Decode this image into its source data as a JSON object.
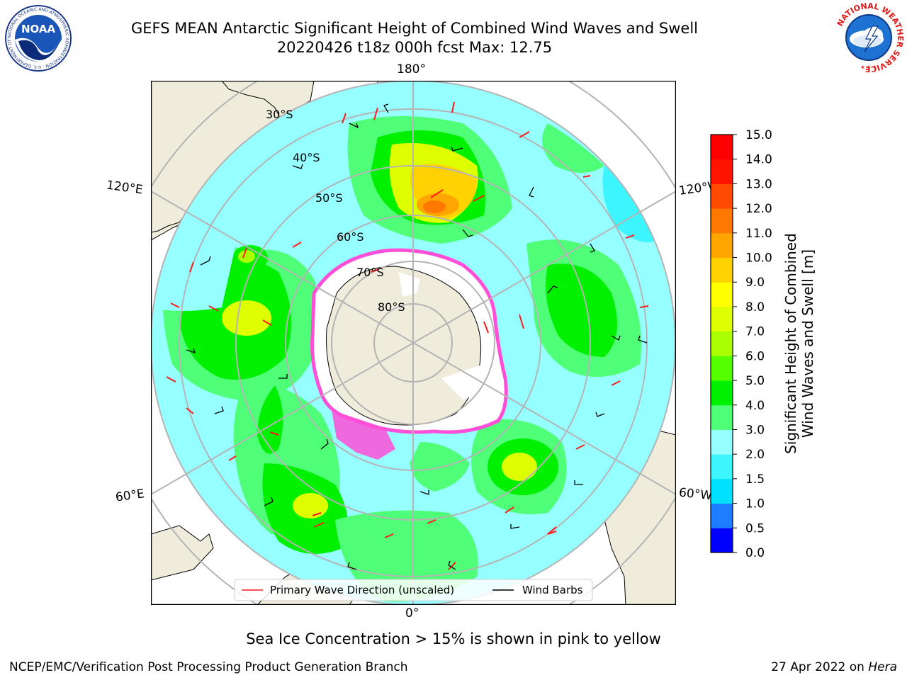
{
  "title": {
    "line1": "GEFS MEAN Antarctic Significant Height of Combined Wind Waves and Swell",
    "line2": "20220426 t18z 000h fcst   Max: 12.75"
  },
  "map": {
    "projection": "south-polar-stereographic",
    "longitude_labels": {
      "top": "180°",
      "bottom": "0°",
      "left_upper": "120°E",
      "right_upper": "120°W",
      "left_lower": "60°E",
      "right_lower": "60°W"
    },
    "latitude_labels": [
      "30°S",
      "40°S",
      "50°S",
      "60°S",
      "70°S",
      "80°S"
    ],
    "colors": {
      "land": "#efecdb",
      "ice_shelf": "#ffffff",
      "sea_ice": "#ff4fd8",
      "wave_direction": "#ff1a1a",
      "wind_barb": "#000000",
      "graticule": "#b4b4b4"
    }
  },
  "legend": {
    "wave_direction": "Primary Wave Direction (unscaled)",
    "wind_barbs": "Wind Barbs"
  },
  "colorbar": {
    "label_line1": "Significant Height of Combined",
    "label_line2": "Wind Waves and Swell [m]",
    "ticks": [
      "0.0",
      "0.5",
      "1.0",
      "1.5",
      "2.0",
      "3.0",
      "4.0",
      "5.0",
      "6.0",
      "7.0",
      "8.0",
      "9.0",
      "10.0",
      "11.0",
      "12.0",
      "13.0",
      "14.0",
      "15.0"
    ],
    "colors": [
      "#0000ff",
      "#1e7dff",
      "#00e1ff",
      "#3cf5ff",
      "#96ffff",
      "#50ff78",
      "#00f000",
      "#55ff00",
      "#aaff00",
      "#ddff00",
      "#ffff00",
      "#ffd200",
      "#ffa500",
      "#ff7800",
      "#ff4b00",
      "#ff1400",
      "#ff0000"
    ]
  },
  "notes": {
    "sea_ice": "Sea Ice Concentration > 15% is shown in pink to yellow"
  },
  "footer": {
    "left": "NCEP/EMC/Verification Post Processing Product Generation Branch",
    "date": "27 Apr 2022 on ",
    "host": "Hera"
  },
  "logos": {
    "left": "NOAA",
    "left_ring": "NATIONAL OCEANIC AND ATMOSPHERIC ADMINISTRATION · U.S. DEPARTMENT OF COMMERCE",
    "right_ring": "NATIONAL WEATHER SERVICE"
  }
}
